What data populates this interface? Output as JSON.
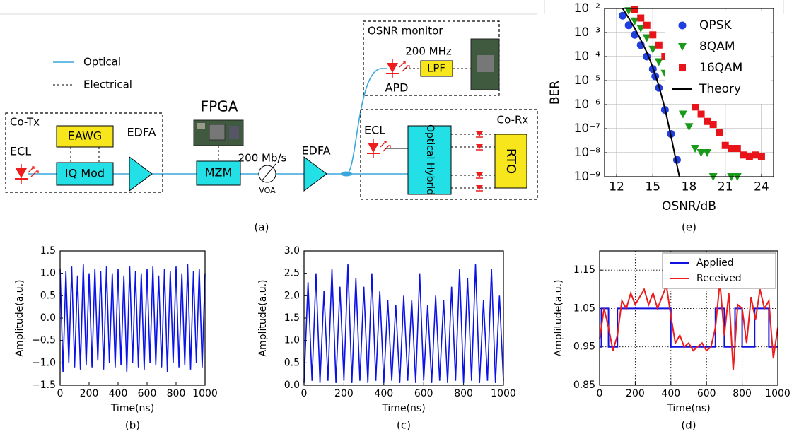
{
  "diagram": {
    "caption": "(a)",
    "legend": [
      "Optical",
      "Electrical"
    ],
    "transmitter": {
      "title": "Co-Tx",
      "laser": "ECL",
      "generator": "EAWG",
      "modulator": "IQ Mod",
      "amplifier": "EDFA"
    },
    "link": {
      "controller": "FPGA",
      "modulator": "MZM",
      "rate": "200 Mb/s",
      "attenuator": "VOA",
      "amplifier": "EDFA"
    },
    "monitor": {
      "title": "OSNR monitor",
      "bandwidth": "200 MHz",
      "filter": "LPF",
      "detector": "APD"
    },
    "receiver": {
      "title": "Co-Rx",
      "laser": "ECL",
      "hybrid": "Optical Hybrid",
      "scope": "RTO"
    }
  },
  "chart_data": [
    {
      "type": "scatter",
      "caption": "(e)",
      "x_label": "OSNR/dB",
      "y_label": "BER",
      "log_y": true,
      "grid": true,
      "grid_style": "solid",
      "legend": "upper right",
      "xlim": [
        11,
        25
      ],
      "xticks": [
        12,
        15,
        18,
        21,
        24
      ],
      "ylim": [
        1e-09,
        0.01
      ],
      "yticks": [
        {
          "value": 0.01,
          "label": "10⁻²"
        },
        {
          "value": 0.001,
          "label": "10⁻³"
        },
        {
          "value": 0.0001,
          "label": "10⁻⁴"
        },
        {
          "value": 1e-05,
          "label": "10⁻⁵"
        },
        {
          "value": 1e-06,
          "label": "10⁻⁶"
        },
        {
          "value": 1e-07,
          "label": "10⁻⁷"
        },
        {
          "value": 1e-08,
          "label": "10⁻⁸"
        },
        {
          "value": 1e-09,
          "label": "10⁻⁹"
        }
      ],
      "series": [
        {
          "name": "QPSK",
          "color": "#1f3fe0",
          "marker": "circle",
          "x": [
            12.5,
            13,
            13.5,
            14,
            14.5,
            15,
            15.2,
            15.5,
            16,
            16.5,
            17
          ],
          "values": [
            0.005,
            0.002,
            0.0008,
            0.0003,
            0.0001,
            3e-05,
            1.5e-05,
            5e-06,
            6e-07,
            6e-08,
            5e-09
          ]
        },
        {
          "name": "8QAM",
          "color": "#1a9a1a",
          "marker": "triangle",
          "x": [
            13,
            13.5,
            14,
            14.5,
            15,
            15.5,
            16,
            16.5,
            17,
            17.5,
            18,
            18.5,
            19,
            19.5,
            20,
            21.5,
            22
          ],
          "values": [
            0.008,
            0.003,
            0.0015,
            0.0006,
            0.0002,
            6e-05,
            2e-05,
            5e-06,
            1.5e-06,
            4e-07,
            1.2e-07,
            1.5e-08,
            1e-08,
            1e-08,
            1e-09,
            1e-09,
            1e-09
          ]
        },
        {
          "name": "16QAM",
          "color": "#e8141a",
          "marker": "square",
          "x": [
            13.5,
            14,
            14.5,
            15,
            15.5,
            16,
            16.5,
            17,
            17.5,
            18,
            18.5,
            19,
            19.5,
            20,
            20.5,
            21,
            21.5,
            22,
            22.5,
            23,
            23.5,
            24
          ],
          "values": [
            0.009,
            0.004,
            0.002,
            0.0008,
            0.0003,
            0.0001,
            4e-05,
            1.5e-05,
            5e-06,
            2e-06,
            8e-07,
            4e-07,
            2e-07,
            1.5e-07,
            7e-08,
            2e-08,
            1.5e-08,
            1.5e-08,
            8e-09,
            7e-09,
            8e-09,
            7e-09
          ]
        },
        {
          "name": "Theory",
          "color": "#000000",
          "marker": "line",
          "x": [
            12.5,
            13,
            13.5,
            14,
            14.5,
            15,
            15.5,
            16,
            16.5,
            17,
            17.2
          ],
          "values": [
            0.01,
            0.004,
            0.0015,
            0.0005,
            0.00015,
            3.5e-05,
            6e-06,
            7e-07,
            5e-08,
            3e-09,
            1e-09
          ]
        }
      ]
    },
    {
      "type": "line",
      "caption": "(b)",
      "x_label": "Time(ns)",
      "y_label": "Amplitude(a.u.)",
      "color": "#0a12e6",
      "xlim": [
        0,
        1000
      ],
      "xticks": [
        0,
        200,
        400,
        600,
        800,
        1000
      ],
      "ylim": [
        -1.5,
        1.5
      ],
      "yticks": [
        {
          "value": -1.5,
          "label": "−1.5"
        },
        {
          "value": -1,
          "label": "−1.0"
        },
        {
          "value": -0.5,
          "label": "−0.5"
        },
        {
          "value": 0,
          "label": "0.0"
        },
        {
          "value": 0.5,
          "label": "0.5"
        },
        {
          "value": 1,
          "label": "1.0"
        },
        {
          "value": 1.5,
          "label": "1.5"
        }
      ],
      "x": [
        0,
        20,
        40,
        60,
        80,
        100,
        120,
        140,
        160,
        180,
        200,
        220,
        240,
        260,
        280,
        300,
        320,
        340,
        360,
        380,
        400,
        420,
        440,
        460,
        480,
        500,
        520,
        540,
        560,
        580,
        600,
        620,
        640,
        660,
        680,
        700,
        720,
        740,
        760,
        780,
        800,
        820,
        840,
        860,
        880,
        900,
        920,
        940,
        960,
        980,
        1000
      ],
      "values": [
        1.1,
        -1.2,
        1.05,
        -1.0,
        1.15,
        -1.1,
        0.95,
        -1.15,
        1.2,
        -1.05,
        1.0,
        -1.1,
        1.1,
        -0.95,
        1.05,
        -1.15,
        1.15,
        -1.0,
        1.0,
        -1.1,
        1.1,
        -1.05,
        0.95,
        -1.2,
        1.15,
        -1.0,
        1.05,
        -1.1,
        1.0,
        -1.15,
        1.1,
        -1.0,
        1.15,
        -1.05,
        0.95,
        -1.1,
        1.1,
        -1.2,
        1.05,
        -1.0,
        1.15,
        -1.1,
        1.0,
        -1.05,
        1.2,
        -1.15,
        1.05,
        -1.0,
        1.1,
        -1.1,
        1.0
      ]
    },
    {
      "type": "line",
      "caption": "(c)",
      "x_label": "Time(ns)",
      "y_label": "Amplitude(a.u.)",
      "color": "#0a12e6",
      "xlim": [
        0,
        1000
      ],
      "xticks": [
        0,
        200,
        400,
        600,
        800,
        1000
      ],
      "ylim": [
        0,
        3
      ],
      "yticks": [
        {
          "value": 0,
          "label": "0.0"
        },
        {
          "value": 0.5,
          "label": "0.5"
        },
        {
          "value": 1,
          "label": "1.0"
        },
        {
          "value": 1.5,
          "label": "1.5"
        },
        {
          "value": 2,
          "label": "2.0"
        },
        {
          "value": 2.5,
          "label": "2.5"
        },
        {
          "value": 3,
          "label": "3.0"
        }
      ],
      "x": [
        0,
        20,
        40,
        60,
        80,
        100,
        120,
        140,
        160,
        180,
        200,
        220,
        240,
        260,
        280,
        300,
        320,
        340,
        360,
        380,
        400,
        420,
        440,
        460,
        480,
        500,
        520,
        540,
        560,
        580,
        600,
        620,
        640,
        660,
        680,
        700,
        720,
        740,
        760,
        780,
        800,
        820,
        840,
        860,
        880,
        900,
        920,
        940,
        960,
        980,
        1000
      ],
      "values": [
        0.05,
        2.3,
        0.1,
        2.5,
        0.05,
        2.1,
        0.1,
        2.6,
        0.05,
        2.2,
        0.1,
        2.7,
        0.05,
        2.4,
        0.1,
        2.2,
        0.05,
        2.5,
        0.1,
        2.1,
        0.05,
        1.9,
        0.1,
        1.8,
        0.05,
        2.0,
        0.1,
        1.9,
        0.05,
        2.5,
        0.1,
        1.8,
        0.05,
        2.0,
        0.1,
        1.9,
        0.05,
        2.2,
        0.1,
        2.6,
        0.05,
        2.4,
        0.1,
        2.7,
        0.05,
        1.9,
        0.1,
        2.6,
        0.05,
        2.0,
        0.1
      ]
    },
    {
      "type": "line",
      "caption": "(d)",
      "x_label": "Time(ns)",
      "y_label": "Amplitude(a.u.)",
      "grid": true,
      "grid_style": "dotted",
      "legend": "upper right",
      "xlim": [
        0,
        1000
      ],
      "xticks": [
        0,
        200,
        400,
        600,
        800,
        1000
      ],
      "ylim": [
        0.85,
        1.2
      ],
      "yticks": [
        0.85,
        0.95,
        1.05,
        1.15
      ],
      "series": [
        {
          "name": "Applied",
          "color": "#1010e0",
          "x": [
            0,
            10,
            10,
            50,
            50,
            100,
            100,
            400,
            400,
            650,
            650,
            700,
            700,
            760,
            760,
            800,
            800,
            870,
            870,
            950,
            950,
            1000
          ],
          "values": [
            0.95,
            0.95,
            1.05,
            1.05,
            0.95,
            0.95,
            1.05,
            1.05,
            0.95,
            0.95,
            1.05,
            1.05,
            0.95,
            0.95,
            1.05,
            1.05,
            0.95,
            0.95,
            1.05,
            1.05,
            0.95,
            0.95
          ]
        },
        {
          "name": "Received",
          "color": "#ee1c1c",
          "x": [
            0,
            25,
            50,
            75,
            100,
            125,
            150,
            175,
            200,
            225,
            250,
            275,
            300,
            325,
            350,
            375,
            400,
            425,
            450,
            475,
            500,
            525,
            550,
            575,
            600,
            625,
            650,
            675,
            700,
            725,
            750,
            775,
            800,
            825,
            850,
            875,
            900,
            925,
            950,
            975,
            1000
          ],
          "values": [
            0.97,
            1.05,
            1.0,
            0.94,
            0.98,
            1.07,
            1.05,
            1.09,
            1.06,
            1.08,
            1.1,
            1.06,
            1.09,
            1.05,
            1.08,
            1.11,
            1.03,
            0.96,
            0.98,
            0.95,
            0.96,
            0.94,
            0.95,
            0.96,
            0.94,
            0.95,
            1.0,
            1.12,
            0.98,
            1.09,
            0.89,
            1.06,
            1.05,
            0.96,
            1.08,
            1.02,
            1.1,
            1.05,
            1.07,
            0.92,
            1.0
          ]
        }
      ]
    }
  ]
}
